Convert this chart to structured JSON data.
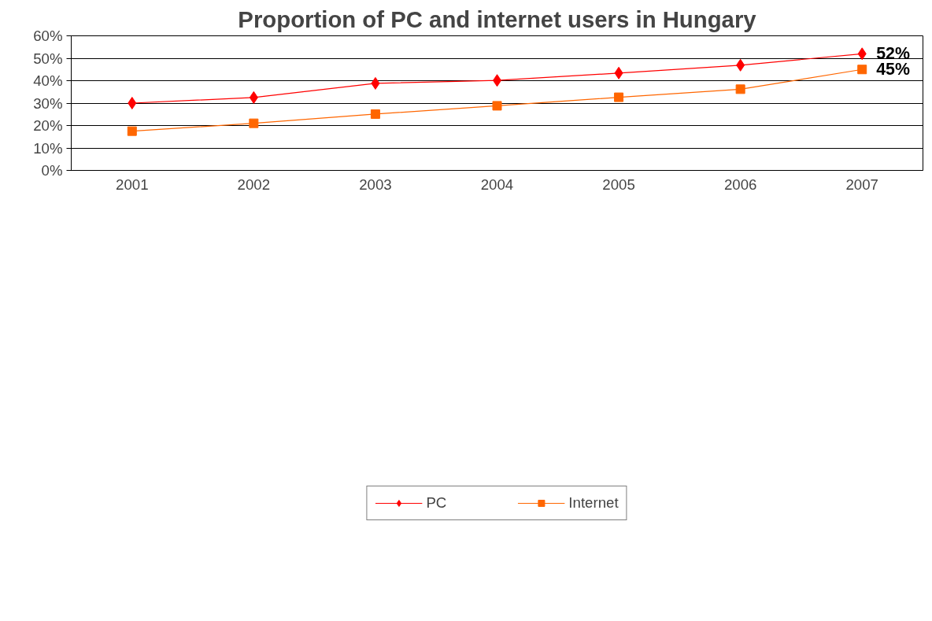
{
  "chart_data": {
    "type": "line",
    "title": "Proportion of PC and internet users in Hungary",
    "categories": [
      "2001",
      "2002",
      "2003",
      "2004",
      "2005",
      "2006",
      "2007"
    ],
    "series": [
      {
        "name": "PC",
        "color": "#ff0000",
        "marker": "diamond",
        "values": [
          30.0,
          32.5,
          38.8,
          40.1,
          43.4,
          46.9,
          52
        ],
        "value_labels": [
          null,
          null,
          null,
          null,
          null,
          null,
          "52%"
        ]
      },
      {
        "name": "Internet",
        "color": "#ff6600",
        "marker": "square",
        "values": [
          17.5,
          21.0,
          25.1,
          28.8,
          32.6,
          36.2,
          45
        ],
        "value_labels": [
          null,
          null,
          null,
          null,
          null,
          null,
          "45%"
        ]
      }
    ],
    "ylim": [
      0,
      60
    ],
    "yticks": [
      {
        "value": 0,
        "label": "0%"
      },
      {
        "value": 10,
        "label": "10%"
      },
      {
        "value": 20,
        "label": "20%"
      },
      {
        "value": 30,
        "label": "30%"
      },
      {
        "value": 40,
        "label": "40%"
      },
      {
        "value": 50,
        "label": "50%"
      },
      {
        "value": 60,
        "label": "60%"
      }
    ],
    "grid": "y",
    "legend": "bottom",
    "line_style": "solid"
  }
}
